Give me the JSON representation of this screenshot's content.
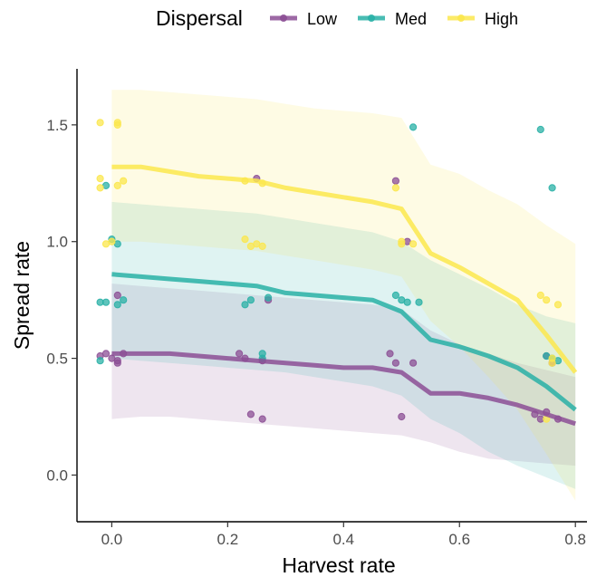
{
  "chart_data": {
    "type": "line",
    "xlabel": "Harvest rate",
    "ylabel": "Spread rate",
    "xlim": [
      -0.06,
      0.82
    ],
    "ylim": [
      -0.2,
      1.74
    ],
    "x_ticks": [
      0.0,
      0.2,
      0.4,
      0.6,
      0.8
    ],
    "x_tick_labels": [
      "0.0",
      "0.2",
      "0.4",
      "0.6",
      "0.8"
    ],
    "y_ticks": [
      0.0,
      0.5,
      1.0,
      1.5
    ],
    "y_tick_labels": [
      "0.0",
      "0.5",
      "1.0",
      "1.5"
    ],
    "grid": false,
    "legend": {
      "title": "Dispersal",
      "position": "top"
    },
    "series": [
      {
        "name": "Low",
        "color": "#8c4f95",
        "x": [
          0.0,
          0.05,
          0.1,
          0.15,
          0.2,
          0.25,
          0.3,
          0.35,
          0.4,
          0.45,
          0.5,
          0.55,
          0.6,
          0.65,
          0.7,
          0.75,
          0.8
        ],
        "mean": [
          0.52,
          0.52,
          0.52,
          0.51,
          0.5,
          0.49,
          0.48,
          0.47,
          0.46,
          0.46,
          0.44,
          0.35,
          0.35,
          0.33,
          0.3,
          0.26,
          0.22
        ],
        "lower": [
          0.24,
          0.25,
          0.25,
          0.24,
          0.23,
          0.22,
          0.21,
          0.2,
          0.19,
          0.18,
          0.17,
          0.14,
          0.1,
          0.07,
          0.06,
          0.05,
          0.04
        ],
        "upper": [
          0.82,
          0.81,
          0.8,
          0.79,
          0.78,
          0.77,
          0.76,
          0.75,
          0.74,
          0.73,
          0.71,
          0.62,
          0.56,
          0.52,
          0.48,
          0.45,
          0.42
        ],
        "points": [
          [
            -0.02,
            0.51
          ],
          [
            -0.01,
            0.52
          ],
          [
            0.0,
            0.5
          ],
          [
            0.01,
            0.49
          ],
          [
            0.01,
            0.77
          ],
          [
            0.02,
            0.52
          ],
          [
            0.01,
            0.48
          ],
          [
            0.22,
            0.52
          ],
          [
            0.23,
            0.5
          ],
          [
            0.24,
            0.26
          ],
          [
            0.25,
            1.27
          ],
          [
            0.26,
            0.24
          ],
          [
            0.26,
            0.49
          ],
          [
            0.27,
            0.75
          ],
          [
            0.48,
            0.52
          ],
          [
            0.49,
            1.26
          ],
          [
            0.49,
            0.48
          ],
          [
            0.5,
            0.25
          ],
          [
            0.51,
            1.0
          ],
          [
            0.52,
            0.48
          ],
          [
            0.73,
            0.26
          ],
          [
            0.74,
            0.24
          ],
          [
            0.75,
            0.27
          ],
          [
            0.75,
            0.51
          ],
          [
            0.76,
            0.48
          ],
          [
            0.77,
            0.24
          ]
        ]
      },
      {
        "name": "Med",
        "color": "#29b0a6",
        "x": [
          0.0,
          0.05,
          0.1,
          0.15,
          0.2,
          0.25,
          0.3,
          0.35,
          0.4,
          0.45,
          0.5,
          0.55,
          0.6,
          0.65,
          0.7,
          0.75,
          0.8
        ],
        "mean": [
          0.86,
          0.85,
          0.84,
          0.83,
          0.82,
          0.81,
          0.78,
          0.77,
          0.76,
          0.75,
          0.7,
          0.58,
          0.55,
          0.51,
          0.46,
          0.38,
          0.28
        ],
        "lower": [
          0.5,
          0.49,
          0.48,
          0.47,
          0.46,
          0.45,
          0.44,
          0.42,
          0.4,
          0.38,
          0.34,
          0.24,
          0.18,
          0.1,
          0.04,
          -0.01,
          -0.06
        ],
        "upper": [
          1.17,
          1.16,
          1.15,
          1.14,
          1.13,
          1.12,
          1.1,
          1.08,
          1.06,
          1.04,
          1.0,
          0.92,
          0.86,
          0.8,
          0.73,
          0.68,
          0.65
        ],
        "points": [
          [
            -0.02,
            0.74
          ],
          [
            -0.01,
            0.74
          ],
          [
            -0.01,
            1.24
          ],
          [
            0.0,
            1.01
          ],
          [
            0.01,
            0.73
          ],
          [
            0.01,
            0.99
          ],
          [
            0.02,
            0.75
          ],
          [
            -0.02,
            0.49
          ],
          [
            0.23,
            0.73
          ],
          [
            0.24,
            0.75
          ],
          [
            0.26,
            0.52
          ],
          [
            0.26,
            0.5
          ],
          [
            0.27,
            0.76
          ],
          [
            0.49,
            0.77
          ],
          [
            0.5,
            0.75
          ],
          [
            0.51,
            0.74
          ],
          [
            0.53,
            0.74
          ],
          [
            0.52,
            1.49
          ],
          [
            0.74,
            1.48
          ],
          [
            0.75,
            0.51
          ],
          [
            0.76,
            1.23
          ],
          [
            0.77,
            0.49
          ],
          [
            0.76,
            0.5
          ]
        ]
      },
      {
        "name": "High",
        "color": "#fbe74d",
        "x": [
          0.0,
          0.05,
          0.1,
          0.15,
          0.2,
          0.25,
          0.3,
          0.35,
          0.4,
          0.45,
          0.5,
          0.55,
          0.6,
          0.65,
          0.7,
          0.75,
          0.8
        ],
        "mean": [
          1.32,
          1.32,
          1.3,
          1.28,
          1.27,
          1.26,
          1.23,
          1.21,
          1.19,
          1.17,
          1.14,
          0.95,
          0.89,
          0.82,
          0.75,
          0.6,
          0.44
        ],
        "lower": [
          1.0,
          1.0,
          0.99,
          0.98,
          0.97,
          0.96,
          0.94,
          0.92,
          0.9,
          0.88,
          0.85,
          0.66,
          0.55,
          0.42,
          0.28,
          0.09,
          -0.11
        ],
        "upper": [
          1.65,
          1.65,
          1.64,
          1.63,
          1.62,
          1.61,
          1.59,
          1.57,
          1.56,
          1.55,
          1.53,
          1.33,
          1.29,
          1.22,
          1.16,
          1.07,
          0.99
        ],
        "points": [
          [
            -0.02,
            1.51
          ],
          [
            0.01,
            1.51
          ],
          [
            0.01,
            1.5
          ],
          [
            -0.02,
            1.27
          ],
          [
            -0.02,
            1.23
          ],
          [
            0.02,
            1.26
          ],
          [
            0.01,
            1.24
          ],
          [
            -0.01,
            0.99
          ],
          [
            0.0,
            1.0
          ],
          [
            0.23,
            1.26
          ],
          [
            0.23,
            1.01
          ],
          [
            0.24,
            0.98
          ],
          [
            0.25,
            0.99
          ],
          [
            0.26,
            1.25
          ],
          [
            0.26,
            0.98
          ],
          [
            0.49,
            1.23
          ],
          [
            0.5,
            1.0
          ],
          [
            0.5,
            0.99
          ],
          [
            0.52,
            0.99
          ],
          [
            0.74,
            0.77
          ],
          [
            0.75,
            0.75
          ],
          [
            0.76,
            0.5
          ],
          [
            0.77,
            0.73
          ],
          [
            0.75,
            0.24
          ],
          [
            0.76,
            0.48
          ]
        ]
      }
    ]
  }
}
